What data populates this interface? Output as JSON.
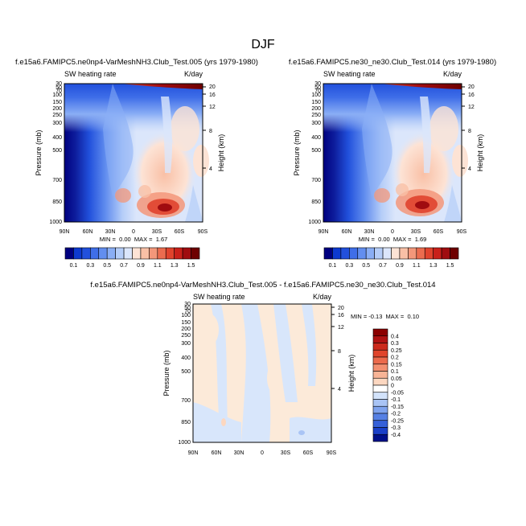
{
  "figure_title": "DJF",
  "chart_data": [
    {
      "type": "heatmap",
      "title": "f.e15a6.FAMIPC5.ne0np4-VarMeshNH3.Club_Test.005 (yrs 1979-1980)",
      "field_label": "SW heating rate",
      "units_label": "K/day",
      "xlabel": "",
      "ylabel": "Pressure (mb)",
      "y2label": "Height (km)",
      "x_ticks": [
        "90N",
        "60N",
        "30N",
        "0",
        "30S",
        "60S",
        "90S"
      ],
      "y_ticks": [
        "30",
        "50",
        "70",
        "100",
        "150",
        "200",
        "250",
        "300",
        "400",
        "500",
        "700",
        "850",
        "1000"
      ],
      "y2_ticks": [
        "20",
        "16",
        "12",
        "8",
        "4"
      ],
      "stats_text": "MIN =  0.00  MAX =  1.67",
      "min": 0.0,
      "max": 1.67,
      "colorbar": {
        "orientation": "horizontal",
        "labels": [
          "0.1",
          "0.3",
          "0.5",
          "0.7",
          "0.9",
          "1.1",
          "1.3",
          "1.5"
        ],
        "colors": [
          "#000080",
          "#0d3ad0",
          "#2150dc",
          "#3f6ee8",
          "#628eef",
          "#8aaef5",
          "#b5cdf8",
          "#dbe6fb",
          "#fde3d5",
          "#f9c0a6",
          "#f3977a",
          "#eb6c4f",
          "#e0432d",
          "#c9201a",
          "#a00c10",
          "#6e0000"
        ]
      }
    },
    {
      "type": "heatmap",
      "title": "f.e15a6.FAMIPC5.ne30_ne30.Club_Test.014 (yrs 1979-1980)",
      "field_label": "SW heating rate",
      "units_label": "K/day",
      "xlabel": "",
      "ylabel": "Pressure (mb)",
      "y2label": "Height (km)",
      "x_ticks": [
        "90N",
        "60N",
        "30N",
        "0",
        "30S",
        "60S",
        "90S"
      ],
      "y_ticks": [
        "30",
        "50",
        "70",
        "100",
        "150",
        "200",
        "250",
        "300",
        "400",
        "500",
        "700",
        "850",
        "1000"
      ],
      "y2_ticks": [
        "20",
        "16",
        "12",
        "8",
        "4"
      ],
      "stats_text": "MIN =  0.00  MAX =  1.69",
      "min": 0.0,
      "max": 1.69,
      "colorbar": {
        "orientation": "horizontal",
        "labels": [
          "0.1",
          "0.3",
          "0.5",
          "0.7",
          "0.9",
          "1.1",
          "1.3",
          "1.5"
        ],
        "colors": [
          "#000080",
          "#0d3ad0",
          "#2150dc",
          "#3f6ee8",
          "#628eef",
          "#8aaef5",
          "#b5cdf8",
          "#dbe6fb",
          "#fde3d5",
          "#f9c0a6",
          "#f3977a",
          "#eb6c4f",
          "#e0432d",
          "#c9201a",
          "#a00c10",
          "#6e0000"
        ]
      }
    },
    {
      "type": "heatmap",
      "title": "f.e15a6.FAMIPC5.ne0np4-VarMeshNH3.Club_Test.005 - f.e15a6.FAMIPC5.ne30_ne30.Club_Test.014",
      "field_label": "SW heating rate",
      "units_label": "K/day",
      "xlabel": "",
      "ylabel": "Pressure (mb)",
      "y2label": "Height (km)",
      "x_ticks": [
        "90N",
        "60N",
        "30N",
        "0",
        "30S",
        "60S",
        "90S"
      ],
      "y_ticks": [
        "30",
        "50",
        "70",
        "100",
        "150",
        "200",
        "250",
        "300",
        "400",
        "500",
        "700",
        "850",
        "1000"
      ],
      "y2_ticks": [
        "20",
        "16",
        "12",
        "8",
        "4"
      ],
      "stats_text": "MIN = -0.13  MAX =  0.10",
      "min": -0.13,
      "max": 0.1,
      "colorbar": {
        "orientation": "vertical",
        "labels": [
          "0.4",
          "0.3",
          "0.25",
          "0.2",
          "0.15",
          "0.1",
          "0.05",
          "0",
          "-0.05",
          "-0.1",
          "-0.15",
          "-0.2",
          "-0.25",
          "-0.3",
          "-0.4"
        ],
        "colors": [
          "#8b0000",
          "#b01212",
          "#cc2a1c",
          "#e0452c",
          "#ec6a4c",
          "#f38f70",
          "#f8b496",
          "#fcd7c0",
          "#ffffff",
          "#d3e3fb",
          "#a9c4f5",
          "#7fa3ee",
          "#5680e4",
          "#3560d8",
          "#1a40c8",
          "#00108a"
        ]
      }
    }
  ]
}
